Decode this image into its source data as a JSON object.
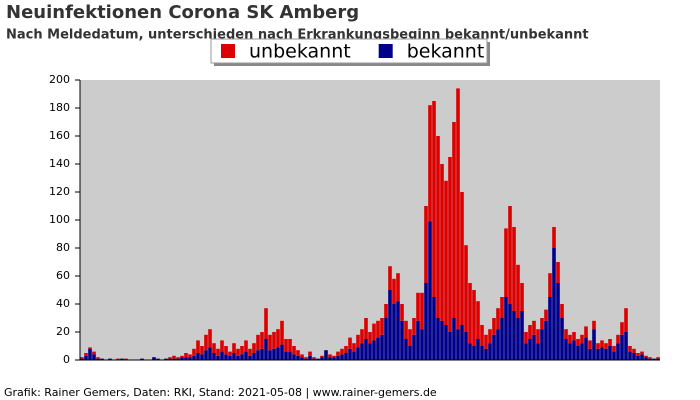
{
  "chart_data": {
    "type": "stacked_bar",
    "title": "Neuinfektionen Corona SK Amberg",
    "subtitle": "Nach Meldedatum, unterschieden nach Erkrankungsbeginn bekannt/unbekannt",
    "caption": "Grafik: Rainer Gemers, Daten: RKI, Stand: 2021-05-08 | www.rainer-gemers.de",
    "categories": [
      null,
      null,
      null,
      null,
      null,
      null,
      null,
      null,
      null,
      null,
      null,
      null,
      null,
      null,
      null,
      null,
      null,
      null,
      null,
      null,
      null,
      null,
      null,
      null,
      null,
      null,
      null,
      null,
      null,
      null,
      null,
      null,
      null,
      null,
      null,
      null,
      null,
      null,
      null,
      null,
      null,
      null,
      null,
      null,
      null,
      null,
      null,
      null,
      null,
      null,
      null,
      null,
      null,
      null,
      null,
      null,
      null,
      null,
      null,
      null,
      null,
      null,
      null,
      null,
      null,
      null,
      null,
      null,
      null,
      null,
      null,
      null,
      null,
      null,
      null,
      null,
      null,
      null,
      null,
      null,
      null,
      null,
      null,
      null,
      null,
      null,
      null,
      null,
      null,
      null,
      null,
      null,
      null,
      null,
      null,
      null,
      null,
      null,
      null,
      null,
      null,
      null,
      null,
      null,
      null,
      null,
      null,
      null,
      null,
      null,
      null,
      null,
      null,
      null,
      null,
      null,
      null,
      null,
      null,
      null,
      null,
      null,
      null,
      null,
      null,
      null,
      null,
      null,
      null,
      null,
      null,
      null,
      null,
      null,
      null,
      null,
      null,
      null,
      null,
      null,
      null,
      null,
      null,
      null,
      null
    ],
    "series": [
      {
        "name": "unbekannt",
        "color": "#dd0000",
        "values": [
          1,
          2,
          1,
          2,
          1,
          0,
          0,
          0,
          0,
          1,
          0,
          1,
          0,
          0,
          0,
          0,
          0,
          0,
          0,
          0,
          0,
          0,
          1,
          2,
          1,
          1,
          3,
          2,
          5,
          9,
          6,
          11,
          13,
          7,
          5,
          8,
          6,
          3,
          7,
          5,
          6,
          8,
          5,
          7,
          11,
          12,
          22,
          11,
          12,
          13,
          17,
          9,
          9,
          6,
          4,
          2,
          1,
          3,
          1,
          0,
          1,
          0,
          2,
          1,
          3,
          4,
          5,
          8,
          6,
          9,
          10,
          15,
          8,
          12,
          12,
          12,
          10,
          17,
          18,
          20,
          12,
          13,
          12,
          12,
          20,
          26,
          55,
          83,
          140,
          130,
          112,
          103,
          125,
          140,
          172,
          95,
          62,
          43,
          40,
          27,
          15,
          10,
          10,
          12,
          15,
          15,
          49,
          70,
          60,
          38,
          20,
          8,
          10,
          10,
          10,
          8,
          8,
          17,
          15,
          15,
          10,
          7,
          6,
          6,
          5,
          6,
          8,
          6,
          6,
          4,
          5,
          4,
          5,
          4,
          6,
          9,
          17,
          4,
          3,
          2,
          2,
          1,
          1,
          0,
          1
        ]
      },
      {
        "name": "bekannt",
        "color": "#00008b",
        "values": [
          1,
          3,
          8,
          4,
          1,
          1,
          0,
          1,
          0,
          0,
          1,
          0,
          0,
          0,
          0,
          1,
          0,
          0,
          2,
          1,
          0,
          1,
          1,
          1,
          1,
          2,
          2,
          2,
          3,
          5,
          4,
          7,
          9,
          5,
          3,
          6,
          4,
          3,
          5,
          3,
          4,
          6,
          3,
          5,
          7,
          8,
          15,
          7,
          8,
          9,
          11,
          6,
          6,
          4,
          3,
          2,
          1,
          3,
          1,
          1,
          2,
          7,
          2,
          2,
          3,
          4,
          5,
          8,
          6,
          9,
          12,
          15,
          12,
          14,
          16,
          18,
          30,
          50,
          40,
          42,
          28,
          15,
          10,
          18,
          28,
          22,
          55,
          99,
          45,
          30,
          28,
          25,
          20,
          30,
          22,
          25,
          20,
          12,
          10,
          15,
          10,
          8,
          12,
          18,
          22,
          30,
          45,
          40,
          35,
          30,
          35,
          12,
          15,
          18,
          12,
          22,
          28,
          45,
          80,
          55,
          30,
          15,
          12,
          14,
          10,
          12,
          16,
          8,
          22,
          8,
          9,
          8,
          10,
          6,
          12,
          18,
          20,
          6,
          5,
          3,
          4,
          2,
          1,
          1,
          1
        ]
      }
    ],
    "ylim": [
      0,
      200
    ],
    "yticks": [
      0,
      20,
      40,
      60,
      80,
      100,
      120,
      140,
      160,
      180,
      200
    ],
    "grid": false,
    "legend": "top",
    "background": "#cccccc"
  }
}
